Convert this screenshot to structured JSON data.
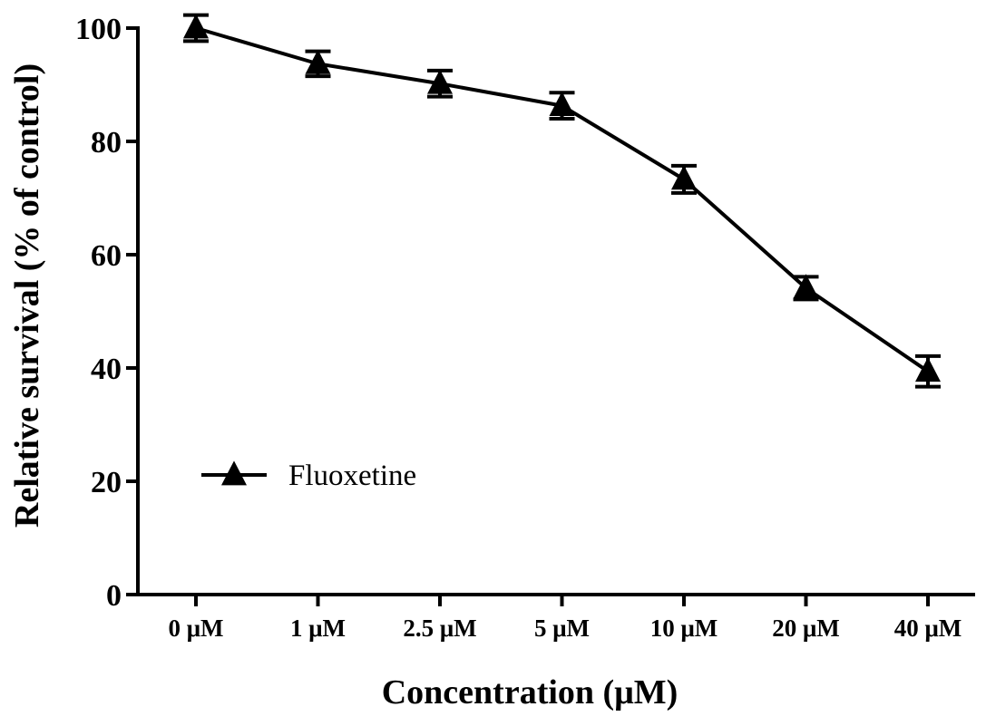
{
  "chart_data": {
    "type": "line",
    "categories": [
      "0 μM",
      "1 μM",
      "2.5 μM",
      "5 μM",
      "10 μM",
      "20 μM",
      "40 μM"
    ],
    "series": [
      {
        "name": "Fluoxetine",
        "values": [
          100,
          93.7,
          90.2,
          86.3,
          73.3,
          54.1,
          39.4
        ],
        "error": [
          2.3,
          2.2,
          2.3,
          2.3,
          2.4,
          2.0,
          2.7
        ],
        "marker": "triangle",
        "color": "#000000"
      }
    ],
    "xlabel": "Concentration  (μM)",
    "ylabel": "Relative survival  (% of control)",
    "ylim": [
      0,
      100
    ],
    "yticks": [
      "0",
      "20",
      "40",
      "60",
      "80",
      "100"
    ],
    "grid": false,
    "legend_position": "bottom-left"
  }
}
